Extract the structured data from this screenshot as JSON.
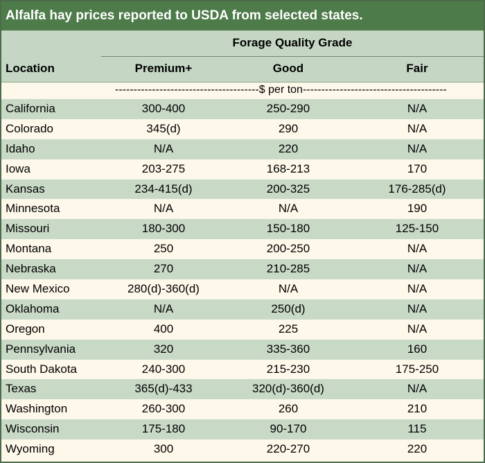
{
  "title": "Alfalfa hay prices reported to USDA from selected states.",
  "header": {
    "group_label": "Forage Quality Grade",
    "location_label": "Location",
    "columns": [
      "Premium+",
      "Good",
      "Fair"
    ]
  },
  "units_label": "---------------------------------------$ per ton---------------------------------------",
  "rows": [
    {
      "location": "California",
      "premium": "300-400",
      "good": "250-290",
      "fair": "N/A"
    },
    {
      "location": "Colorado",
      "premium": "345(d)",
      "good": "290",
      "fair": "N/A"
    },
    {
      "location": "Idaho",
      "premium": "N/A",
      "good": "220",
      "fair": "N/A"
    },
    {
      "location": "Iowa",
      "premium": "203-275",
      "good": "168-213",
      "fair": "170"
    },
    {
      "location": "Kansas",
      "premium": "234-415(d)",
      "good": "200-325",
      "fair": "176-285(d)"
    },
    {
      "location": "Minnesota",
      "premium": "N/A",
      "good": "N/A",
      "fair": "190"
    },
    {
      "location": "Missouri",
      "premium": "180-300",
      "good": "150-180",
      "fair": "125-150"
    },
    {
      "location": "Montana",
      "premium": "250",
      "good": "200-250",
      "fair": "N/A"
    },
    {
      "location": "Nebraska",
      "premium": "270",
      "good": "210-285",
      "fair": "N/A"
    },
    {
      "location": "New Mexico",
      "premium": "280(d)-360(d)",
      "good": "N/A",
      "fair": "N/A"
    },
    {
      "location": "Oklahoma",
      "premium": "N/A",
      "good": "250(d)",
      "fair": "N/A"
    },
    {
      "location": "Oregon",
      "premium": "400",
      "good": "225",
      "fair": "N/A"
    },
    {
      "location": "Pennsylvania",
      "premium": "320",
      "good": "335-360",
      "fair": "160"
    },
    {
      "location": "South Dakota",
      "premium": "240-300",
      "good": "215-230",
      "fair": "175-250"
    },
    {
      "location": "Texas",
      "premium": "365(d)-433",
      "good": "320(d)-360(d)",
      "fair": "N/A"
    },
    {
      "location": "Washington",
      "premium": "260-300",
      "good": "260",
      "fair": "210"
    },
    {
      "location": "Wisconsin",
      "premium": "175-180",
      "good": "90-170",
      "fair": "115"
    },
    {
      "location": "Wyoming",
      "premium": "300",
      "good": "220-270",
      "fair": "220"
    }
  ],
  "colors": {
    "title_bg": "#4e7b4a",
    "band": "#c8d9c6",
    "cream": "#fdf8e9"
  }
}
